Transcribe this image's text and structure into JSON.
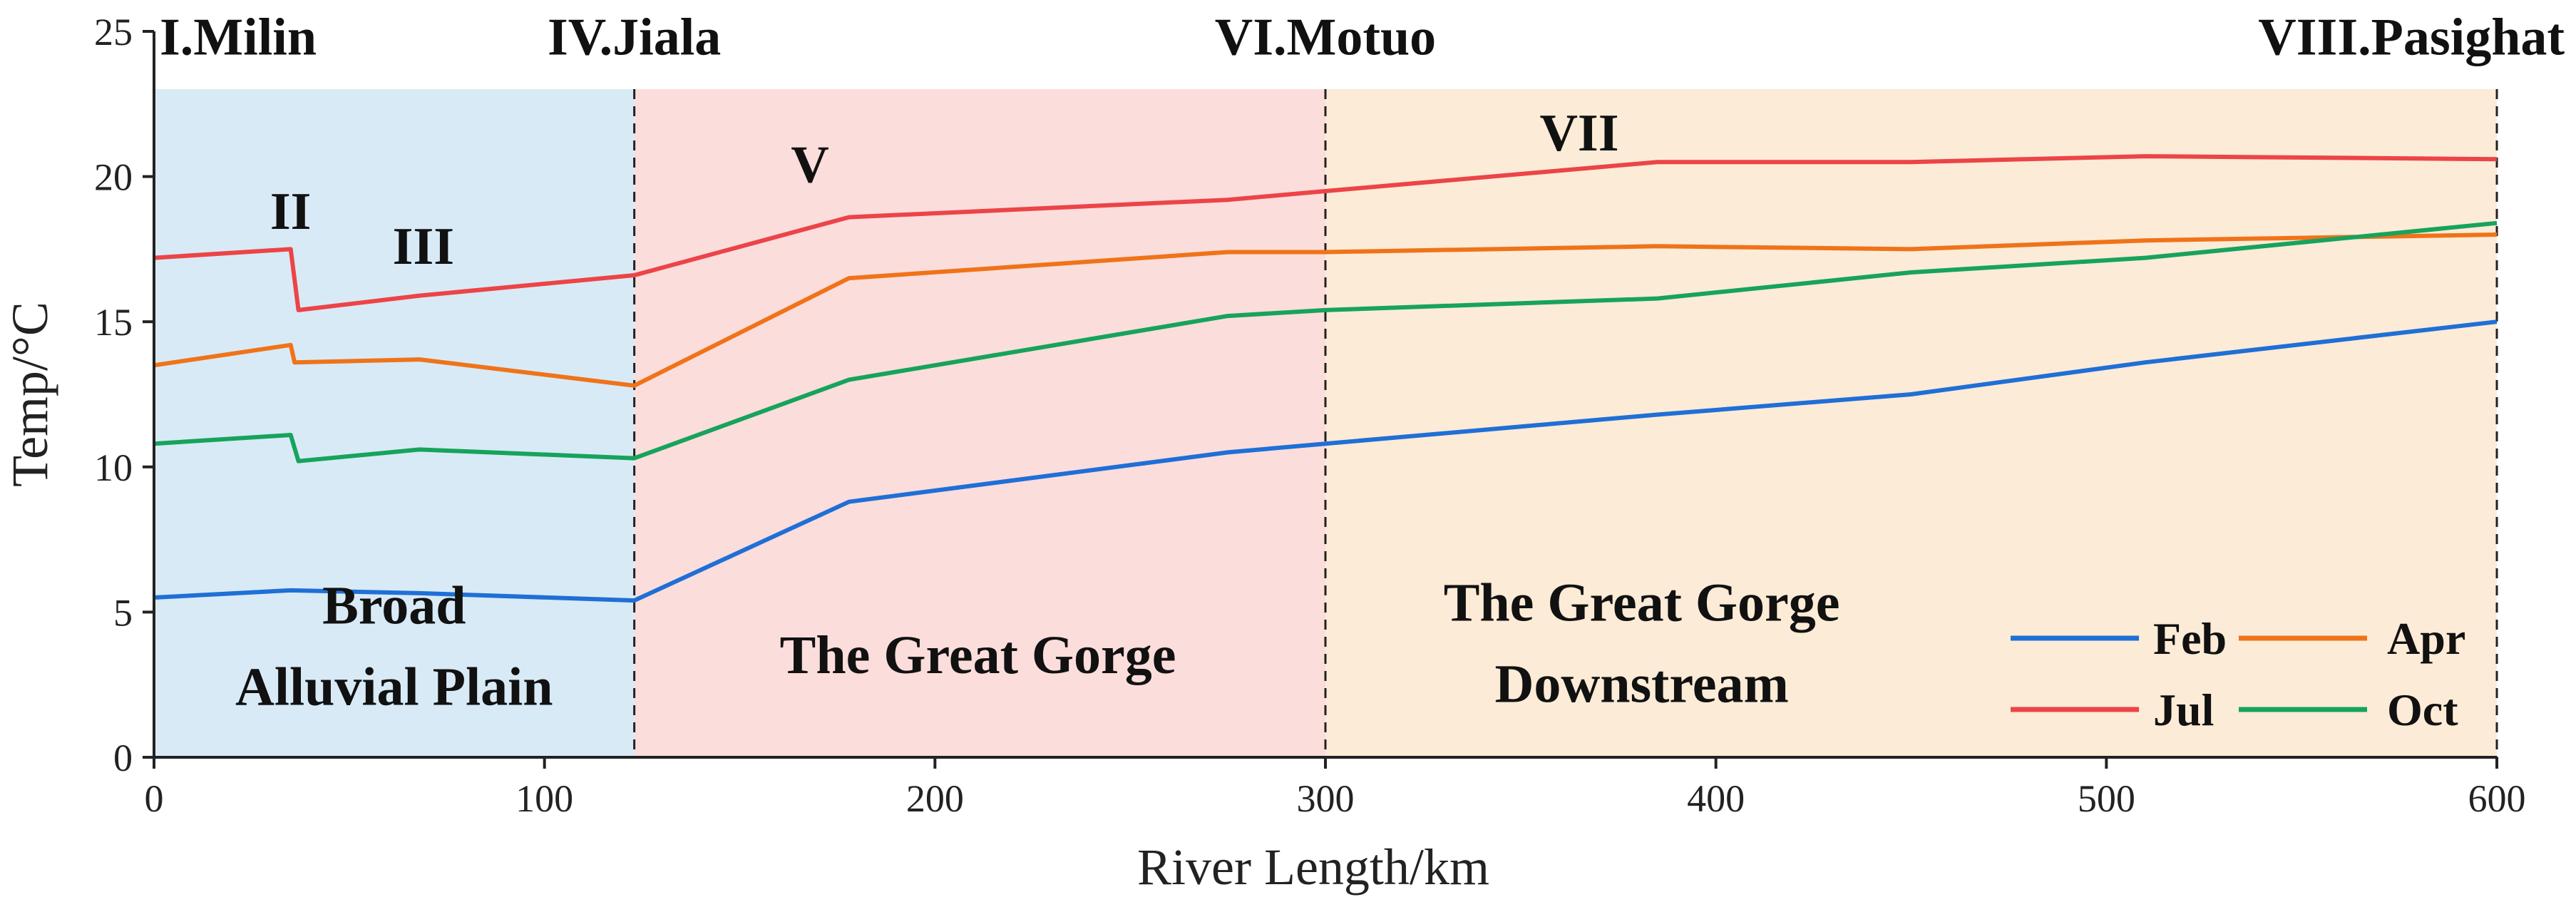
{
  "chart_data": {
    "type": "line",
    "xlabel": "River Length/km",
    "ylabel": "Temp/°C",
    "xlim": [
      0,
      600
    ],
    "ylim": [
      0,
      25
    ],
    "xticks": [
      0,
      100,
      200,
      300,
      400,
      500,
      600
    ],
    "yticks": [
      0,
      5,
      10,
      15,
      20,
      25
    ],
    "regions": [
      {
        "x0": 0,
        "x1": 123,
        "color": "#d8eaf6",
        "label_lines": [
          "Broad",
          "Alluvial Plain"
        ],
        "label_x": 61.5,
        "label_y": [
          4.6,
          1.8
        ]
      },
      {
        "x0": 123,
        "x1": 300,
        "color": "#fbdddc",
        "label_lines": [
          "The Great Gorge"
        ],
        "label_x": 211,
        "label_y": [
          2.9
        ]
      },
      {
        "x0": 300,
        "x1": 600,
        "color": "#fcebd7",
        "label_lines": [
          "The Great Gorge",
          "Downstream"
        ],
        "label_x": 381,
        "label_y": [
          4.7,
          1.9
        ]
      }
    ],
    "region_boundaries": [
      123,
      300,
      600
    ],
    "stations": [
      {
        "label": "I.Milin",
        "x": 0,
        "y": 24.2,
        "anchor": "start"
      },
      {
        "label": "IV.Jiala",
        "x": 123,
        "y": 24.2,
        "anchor": "middle"
      },
      {
        "label": "VI.Motuo",
        "x": 300,
        "y": 24.2,
        "anchor": "middle"
      },
      {
        "label": "VIII.Pasighat",
        "x": 600,
        "y": 24.2,
        "anchor": "end"
      }
    ],
    "site_labels": [
      {
        "label": "II",
        "x": 35,
        "y": 18.2
      },
      {
        "label": "III",
        "x": 69,
        "y": 17.0
      },
      {
        "label": "V",
        "x": 168,
        "y": 19.8
      },
      {
        "label": "VII",
        "x": 365,
        "y": 20.9
      }
    ],
    "series": [
      {
        "name": "Feb",
        "color": "#1f6fd6",
        "x": [
          0,
          35,
          68,
          123,
          178,
          275,
          300,
          385,
          450,
          510,
          600
        ],
        "values": [
          5.5,
          5.75,
          5.65,
          5.4,
          8.8,
          10.5,
          10.8,
          11.8,
          12.5,
          13.6,
          15.0
        ]
      },
      {
        "name": "Apr",
        "color": "#f07319",
        "x": [
          0,
          35,
          36,
          68,
          123,
          178,
          275,
          300,
          385,
          450,
          510,
          600
        ],
        "values": [
          13.5,
          14.2,
          13.6,
          13.7,
          12.8,
          16.5,
          17.4,
          17.4,
          17.6,
          17.5,
          17.8,
          18.0
        ]
      },
      {
        "name": "Jul",
        "color": "#ec4447",
        "x": [
          0,
          35,
          37,
          68,
          123,
          178,
          275,
          300,
          385,
          450,
          510,
          600
        ],
        "values": [
          17.2,
          17.5,
          15.4,
          15.9,
          16.6,
          18.6,
          19.2,
          19.5,
          20.5,
          20.5,
          20.7,
          20.6
        ]
      },
      {
        "name": "Oct",
        "color": "#17a35c",
        "x": [
          0,
          35,
          37,
          68,
          123,
          178,
          275,
          300,
          385,
          450,
          510,
          600
        ],
        "values": [
          10.8,
          11.1,
          10.2,
          10.6,
          10.3,
          13.0,
          15.2,
          15.4,
          15.8,
          16.7,
          17.2,
          18.4
        ]
      }
    ],
    "legend": {
      "position": "bottom-right",
      "order": [
        "Feb",
        "Apr",
        "Jul",
        "Oct"
      ]
    }
  }
}
